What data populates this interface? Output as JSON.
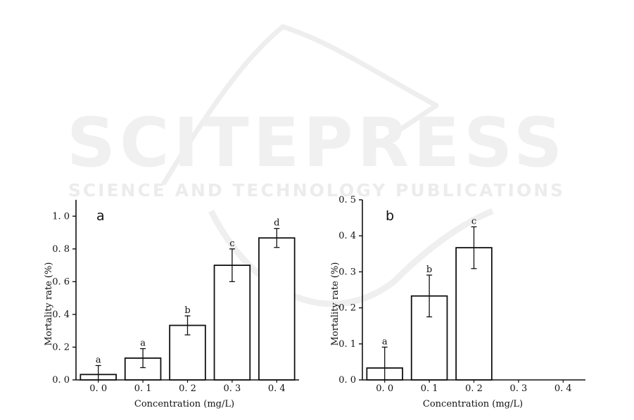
{
  "watermark": {
    "main": "SCITEPRESS",
    "sub": "SCIENCE AND TECHNOLOGY PUBLICATIONS"
  },
  "chart_data": [
    {
      "type": "bar",
      "panel_label": "a",
      "categories": [
        "0. 0",
        "0. 1",
        "0. 2",
        "0. 3",
        "0. 4"
      ],
      "values": [
        0.033,
        0.133,
        0.333,
        0.7,
        0.867
      ],
      "errors": [
        0.055,
        0.058,
        0.058,
        0.1,
        0.058
      ],
      "significance": [
        "a",
        "a",
        "b",
        "c",
        "d"
      ],
      "xlabel": "Concentration (mg/L)",
      "ylabel": "Mortality rate (%)",
      "ylim": [
        0,
        1.1
      ],
      "yticks": [
        0.0,
        0.2,
        0.4,
        0.6,
        0.8,
        1.0
      ],
      "ytick_labels": [
        "0. 0",
        "0. 2",
        "0. 4",
        "0. 6",
        "0. 8",
        "1. 0"
      ],
      "grid": false
    },
    {
      "type": "bar",
      "panel_label": "b",
      "categories": [
        "0. 0",
        "0. 1",
        "0. 2",
        "0. 3",
        "0. 4"
      ],
      "values": [
        0.033,
        0.233,
        0.367,
        null,
        null
      ],
      "errors": [
        0.058,
        0.058,
        0.058,
        null,
        null
      ],
      "significance": [
        "a",
        "b",
        "c",
        "",
        ""
      ],
      "xlabel": "Concentration (mg/L)",
      "ylabel": "Mortality rate (%)",
      "ylim": [
        0,
        0.5
      ],
      "yticks": [
        0.0,
        0.1,
        0.2,
        0.3,
        0.4,
        0.5
      ],
      "ytick_labels": [
        "0. 0",
        "0. 1",
        "0. 2",
        "0. 3",
        "0. 4",
        "0. 5"
      ],
      "grid": false
    }
  ]
}
